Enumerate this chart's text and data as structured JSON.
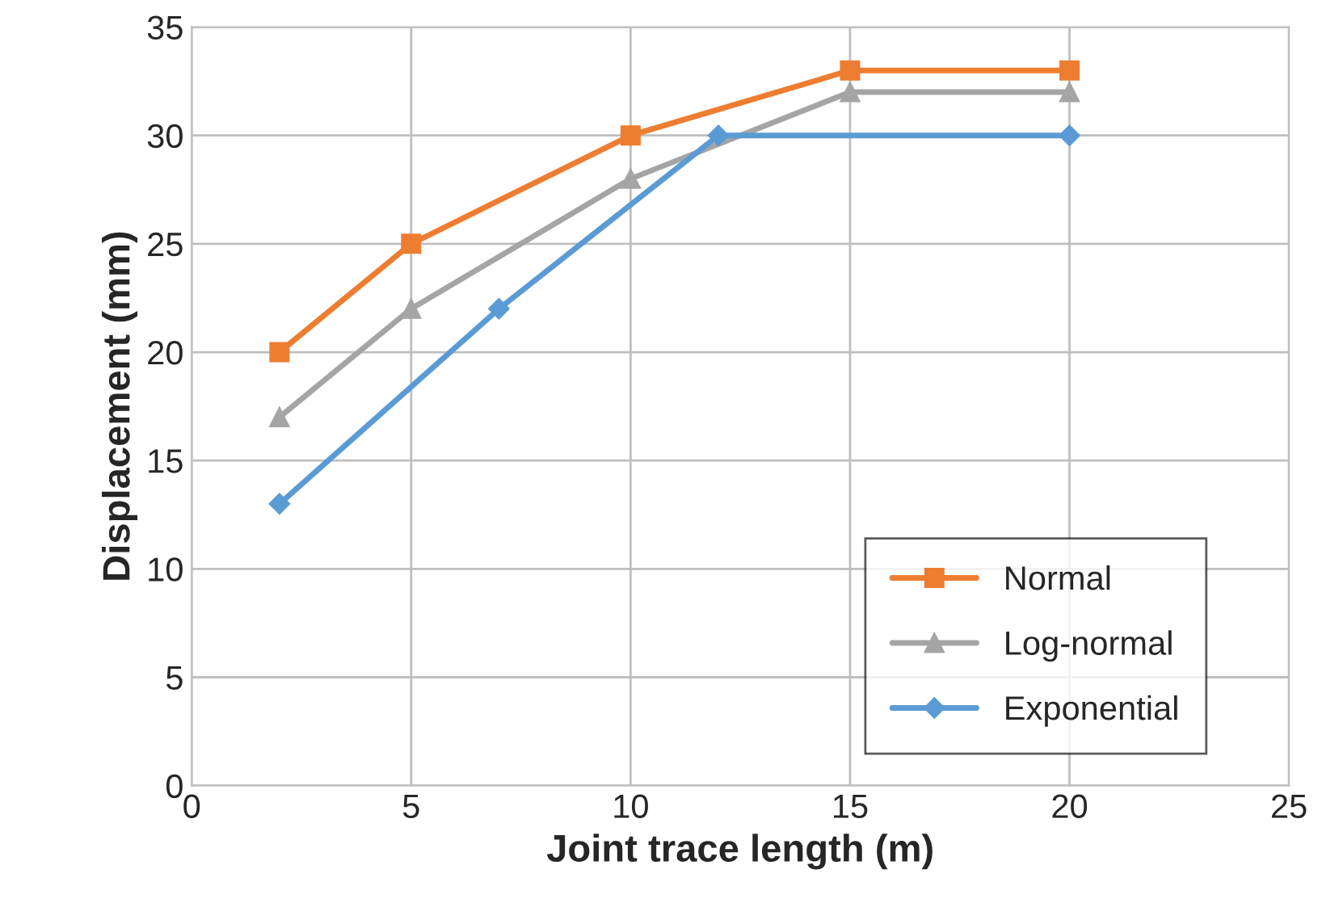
{
  "chart_data": {
    "type": "line",
    "xlabel": "Joint trace length (m)",
    "ylabel": "Displacement (mm)",
    "xlim": [
      0,
      25
    ],
    "xticks": [
      0,
      5,
      10,
      15,
      20,
      25
    ],
    "ylim": [
      0,
      35
    ],
    "yticks": [
      0,
      5,
      10,
      15,
      20,
      25,
      30,
      35
    ],
    "grid": true,
    "legend": "bottom right",
    "line_style": "solid",
    "series": [
      {
        "name": "Normal",
        "color": "#ed7d31",
        "marker": "square",
        "x": [
          2,
          5,
          10,
          15,
          20
        ],
        "values": [
          20,
          25,
          30,
          33,
          33
        ]
      },
      {
        "name": "Log-normal",
        "color": "#a5a5a5",
        "marker": "triangle",
        "x": [
          2,
          5,
          10,
          15,
          20
        ],
        "values": [
          17,
          22,
          28,
          32,
          32
        ]
      },
      {
        "name": "Exponential",
        "color": "#5b9bd5",
        "marker": "diamond",
        "x": [
          2,
          7,
          12,
          20
        ],
        "values": [
          13,
          22,
          30,
          30
        ]
      }
    ]
  }
}
